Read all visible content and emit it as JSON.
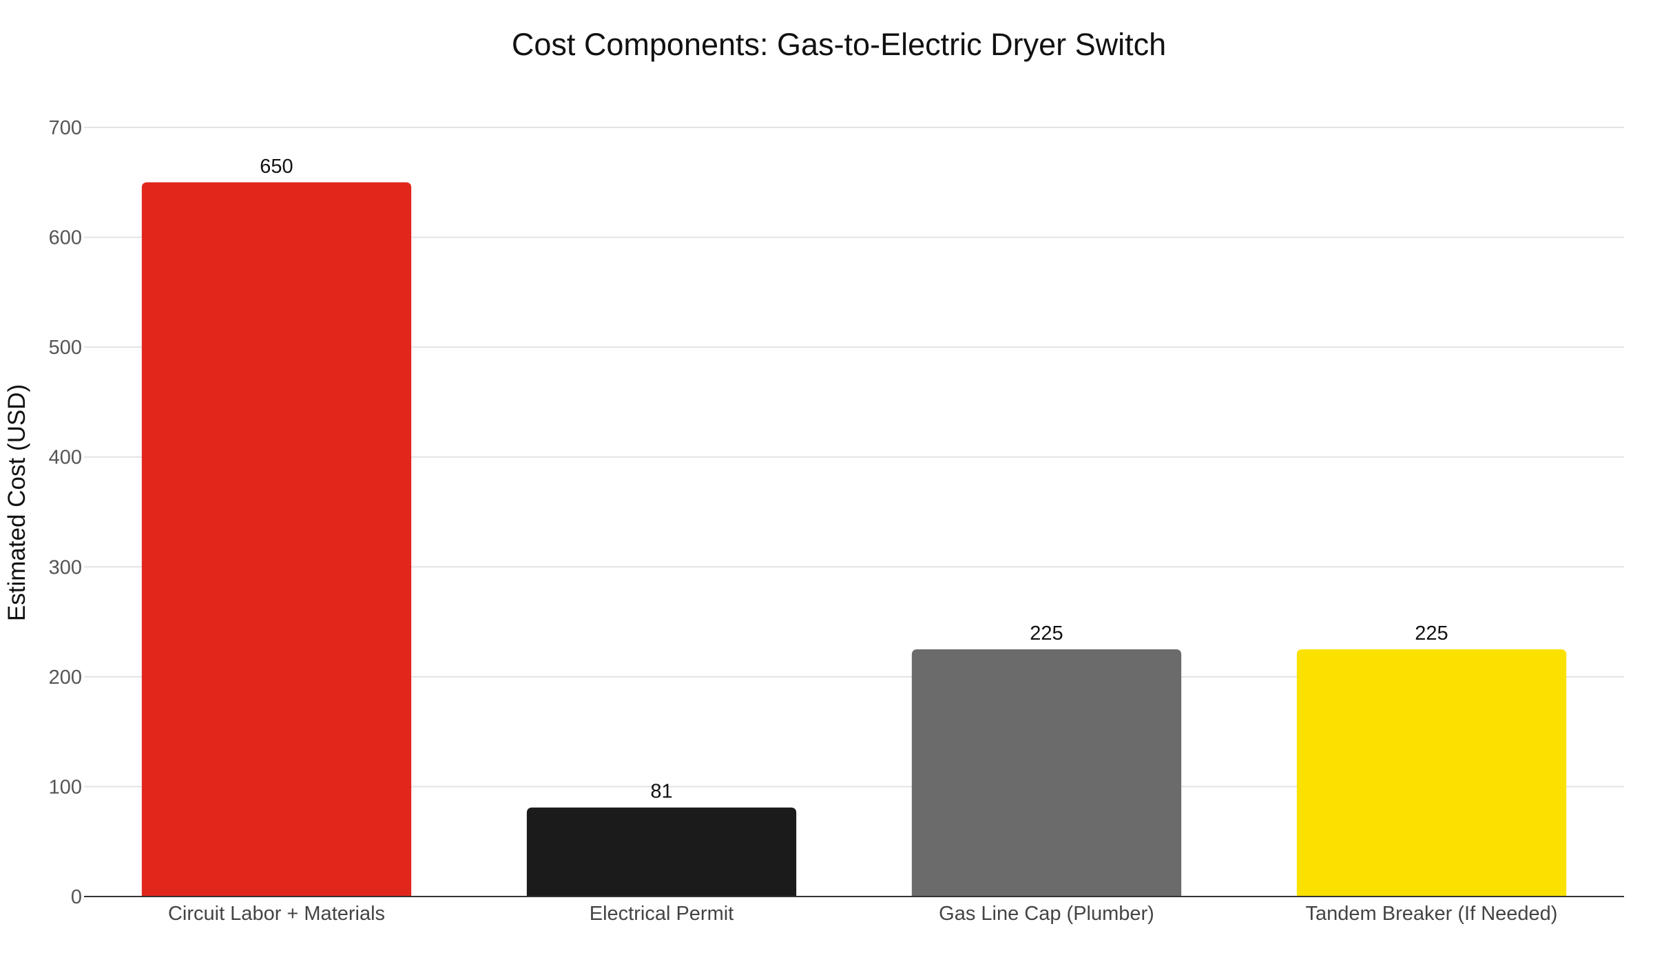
{
  "chart_data": {
    "type": "bar",
    "title": "Cost Components: Gas-to-Electric Dryer Switch",
    "xlabel": "",
    "ylabel": "Estimated Cost (USD)",
    "categories": [
      "Circuit Labor + Materials",
      "Electrical Permit",
      "Gas Line Cap (Plumber)",
      "Tandem Breaker (If Needed)"
    ],
    "values": [
      650,
      81,
      225,
      225
    ],
    "data_labels": [
      "650",
      "81",
      "225",
      "225"
    ],
    "colors": [
      "#e1261c",
      "#1b1b1b",
      "#6b6b6b",
      "#fbe100"
    ],
    "ylim": [
      0,
      700
    ],
    "yticks": [
      0,
      100,
      200,
      300,
      400,
      500,
      600,
      700
    ],
    "grid": true,
    "legend": "none"
  }
}
